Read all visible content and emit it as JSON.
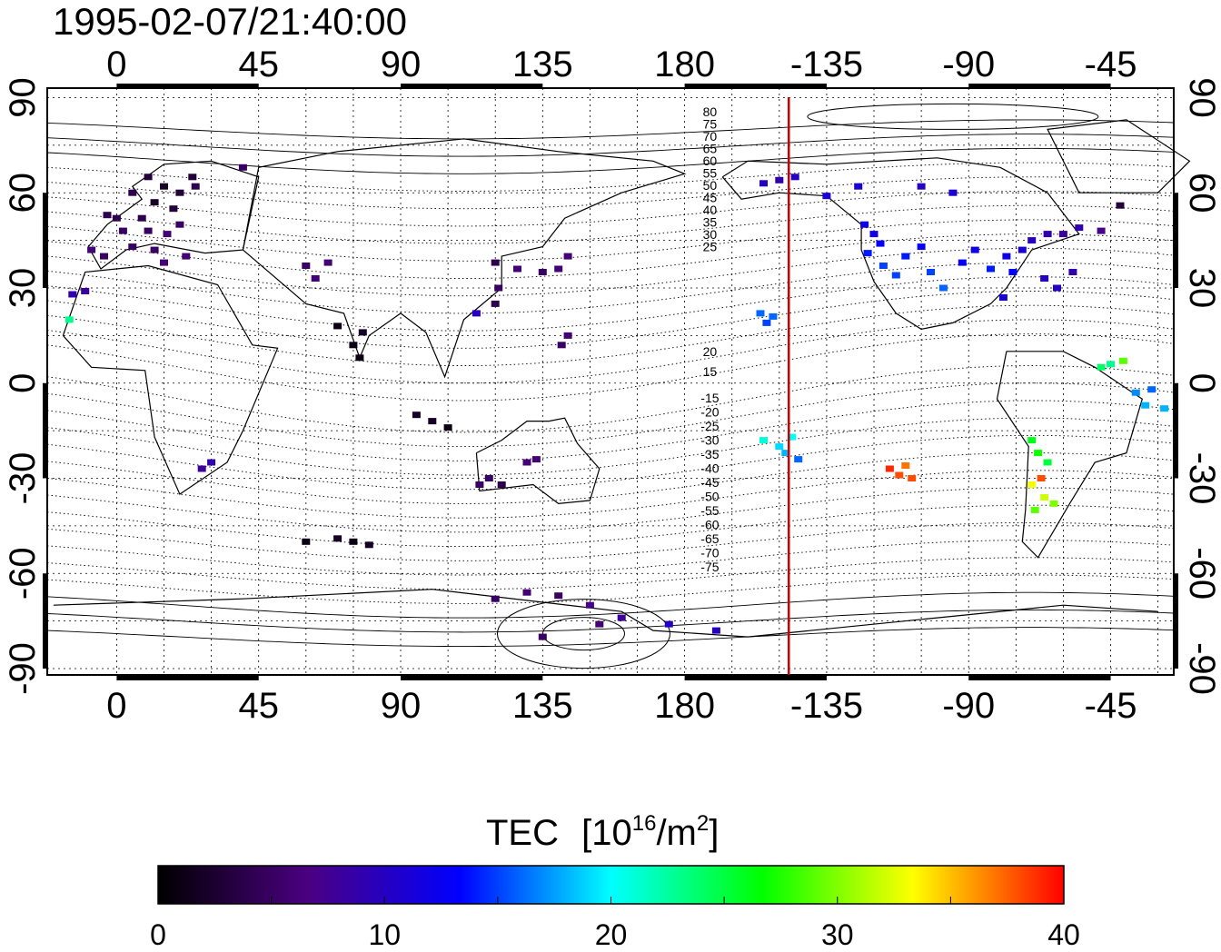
{
  "timestamp": "1995-02-07/21:40:00",
  "map": {
    "lon_ticks": [
      "0",
      "45",
      "90",
      "135",
      "180",
      "-135",
      "-90",
      "-45"
    ],
    "lat_ticks": [
      "90",
      "60",
      "30",
      "0",
      "-30",
      "-60",
      "-90"
    ],
    "lon_range": [
      -22,
      335
    ],
    "lat_range": [
      -92,
      93
    ],
    "grid": true,
    "terminator_lon": 213
  },
  "contour_labels": {
    "north": [
      "80",
      "75",
      "70",
      "65",
      "60",
      "55",
      "50",
      "45",
      "40",
      "35",
      "30",
      "25",
      "20",
      "15"
    ],
    "south": [
      "-15",
      "-20",
      "-25",
      "-30",
      "-35",
      "-40",
      "-45",
      "-50",
      "-55",
      "-60",
      "-65",
      "-70",
      "-75"
    ]
  },
  "colorbar": {
    "title": "TEC",
    "unit_base": "[10",
    "unit_exp": "16",
    "unit_mid": "/m",
    "unit_exp2": "2",
    "unit_end": "]",
    "ticks": [
      "0",
      "10",
      "20",
      "30",
      "40"
    ],
    "min": 0,
    "max": 40,
    "colors": [
      "#000000",
      "#4b0082",
      "#0000ff",
      "#00ffff",
      "#00ff00",
      "#ffff00",
      "#ff0000"
    ]
  },
  "chart_data": {
    "type": "scatter",
    "title": "1995-02-07/21:40:00",
    "xlabel": "",
    "ylabel": "",
    "value_label": "TEC [10^16/m^2]",
    "xlim": [
      -22,
      335
    ],
    "ylim": [
      -92,
      93
    ],
    "points": [
      {
        "lon": 10,
        "lat": 65,
        "tec": 3
      },
      {
        "lon": 15,
        "lat": 62,
        "tec": 2
      },
      {
        "lon": 20,
        "lat": 60,
        "tec": 3
      },
      {
        "lon": 25,
        "lat": 62,
        "tec": 4
      },
      {
        "lon": 5,
        "lat": 60,
        "tec": 4
      },
      {
        "lon": 12,
        "lat": 57,
        "tec": 2
      },
      {
        "lon": 18,
        "lat": 55,
        "tec": 3
      },
      {
        "lon": 8,
        "lat": 52,
        "tec": 4
      },
      {
        "lon": 0,
        "lat": 52,
        "tec": 4
      },
      {
        "lon": -3,
        "lat": 53,
        "tec": 4
      },
      {
        "lon": 2,
        "lat": 48,
        "tec": 5
      },
      {
        "lon": 10,
        "lat": 48,
        "tec": 5
      },
      {
        "lon": 16,
        "lat": 47,
        "tec": 6
      },
      {
        "lon": 20,
        "lat": 50,
        "tec": 5
      },
      {
        "lon": 12,
        "lat": 42,
        "tec": 5
      },
      {
        "lon": 5,
        "lat": 43,
        "tec": 5
      },
      {
        "lon": 15,
        "lat": 38,
        "tec": 6
      },
      {
        "lon": -4,
        "lat": 40,
        "tec": 5
      },
      {
        "lon": -8,
        "lat": 42,
        "tec": 6
      },
      {
        "lon": 22,
        "lat": 40,
        "tec": 6
      },
      {
        "lon": 24,
        "lat": 65,
        "tec": 3
      },
      {
        "lon": 40,
        "lat": 68,
        "tec": 5
      },
      {
        "lon": -10,
        "lat": 29,
        "tec": 8
      },
      {
        "lon": -14,
        "lat": 28,
        "tec": 9
      },
      {
        "lon": -15,
        "lat": 20,
        "tec": 23
      },
      {
        "lon": 60,
        "lat": 37,
        "tec": 5
      },
      {
        "lon": 63,
        "lat": 33,
        "tec": 6
      },
      {
        "lon": 67,
        "lat": 38,
        "tec": 6
      },
      {
        "lon": 75,
        "lat": 12,
        "tec": 1
      },
      {
        "lon": 77,
        "lat": 8,
        "tec": 1
      },
      {
        "lon": 70,
        "lat": 18,
        "tec": 1
      },
      {
        "lon": 78,
        "lat": 16,
        "tec": 2
      },
      {
        "lon": 120,
        "lat": 25,
        "tec": 4
      },
      {
        "lon": 121,
        "lat": 30,
        "tec": 5
      },
      {
        "lon": 127,
        "lat": 36,
        "tec": 6
      },
      {
        "lon": 135,
        "lat": 35,
        "tec": 5
      },
      {
        "lon": 140,
        "lat": 36,
        "tec": 6
      },
      {
        "lon": 143,
        "lat": 40,
        "tec": 6
      },
      {
        "lon": 120,
        "lat": 38,
        "tec": 4
      },
      {
        "lon": 114,
        "lat": 22,
        "tec": 10
      },
      {
        "lon": 141,
        "lat": 12,
        "tec": 5
      },
      {
        "lon": 143,
        "lat": 15,
        "tec": 6
      },
      {
        "lon": 95,
        "lat": -10,
        "tec": 2
      },
      {
        "lon": 100,
        "lat": -12,
        "tec": 2
      },
      {
        "lon": 105,
        "lat": -14,
        "tec": 1
      },
      {
        "lon": 27,
        "lat": -27,
        "tec": 8
      },
      {
        "lon": 30,
        "lat": -25,
        "tec": 9
      },
      {
        "lon": 115,
        "lat": -32,
        "tec": 5
      },
      {
        "lon": 118,
        "lat": -30,
        "tec": 5
      },
      {
        "lon": 122,
        "lat": -32,
        "tec": 4
      },
      {
        "lon": 130,
        "lat": -25,
        "tec": 6
      },
      {
        "lon": 133,
        "lat": -24,
        "tec": 6
      },
      {
        "lon": 60,
        "lat": -50,
        "tec": 1
      },
      {
        "lon": 70,
        "lat": -49,
        "tec": 2
      },
      {
        "lon": 75,
        "lat": -50,
        "tec": 1
      },
      {
        "lon": 80,
        "lat": -51,
        "tec": 2
      },
      {
        "lon": 120,
        "lat": -68,
        "tec": 5
      },
      {
        "lon": 130,
        "lat": -66,
        "tec": 6
      },
      {
        "lon": 140,
        "lat": -67,
        "tec": 5
      },
      {
        "lon": 150,
        "lat": -70,
        "tec": 7
      },
      {
        "lon": 160,
        "lat": -74,
        "tec": 8
      },
      {
        "lon": 175,
        "lat": -76,
        "tec": 10
      },
      {
        "lon": 190,
        "lat": -78,
        "tec": 10
      },
      {
        "lon": 135,
        "lat": -80,
        "tec": 5
      },
      {
        "lon": 153,
        "lat": -76,
        "tec": 6
      },
      {
        "lon": 205,
        "lat": 63,
        "tec": 10
      },
      {
        "lon": 210,
        "lat": 64,
        "tec": 9
      },
      {
        "lon": 215,
        "lat": 65,
        "tec": 10
      },
      {
        "lon": 225,
        "lat": 59,
        "tec": 11
      },
      {
        "lon": 235,
        "lat": 62,
        "tec": 11
      },
      {
        "lon": 255,
        "lat": 62,
        "tec": 10
      },
      {
        "lon": 265,
        "lat": 60,
        "tec": 11
      },
      {
        "lon": 237,
        "lat": 50,
        "tec": 12
      },
      {
        "lon": 240,
        "lat": 47,
        "tec": 12
      },
      {
        "lon": 242,
        "lat": 44,
        "tec": 13
      },
      {
        "lon": 238,
        "lat": 41,
        "tec": 14
      },
      {
        "lon": 243,
        "lat": 37,
        "tec": 15
      },
      {
        "lon": 247,
        "lat": 34,
        "tec": 15
      },
      {
        "lon": 250,
        "lat": 40,
        "tec": 14
      },
      {
        "lon": 255,
        "lat": 43,
        "tec": 13
      },
      {
        "lon": 258,
        "lat": 35,
        "tec": 15
      },
      {
        "lon": 262,
        "lat": 30,
        "tec": 16
      },
      {
        "lon": 268,
        "lat": 38,
        "tec": 13
      },
      {
        "lon": 272,
        "lat": 42,
        "tec": 12
      },
      {
        "lon": 277,
        "lat": 36,
        "tec": 14
      },
      {
        "lon": 282,
        "lat": 40,
        "tec": 12
      },
      {
        "lon": 287,
        "lat": 42,
        "tec": 11
      },
      {
        "lon": 284,
        "lat": 35,
        "tec": 13
      },
      {
        "lon": 290,
        "lat": 45,
        "tec": 10
      },
      {
        "lon": 295,
        "lat": 47,
        "tec": 9
      },
      {
        "lon": 300,
        "lat": 47,
        "tec": 8
      },
      {
        "lon": 305,
        "lat": 49,
        "tec": 9
      },
      {
        "lon": 312,
        "lat": 48,
        "tec": 7
      },
      {
        "lon": 318,
        "lat": 56,
        "tec": 3
      },
      {
        "lon": 281,
        "lat": 27,
        "tec": 11
      },
      {
        "lon": 294,
        "lat": 33,
        "tec": 10
      },
      {
        "lon": 298,
        "lat": 30,
        "tec": 10
      },
      {
        "lon": 303,
        "lat": 35,
        "tec": 9
      },
      {
        "lon": 204,
        "lat": 22,
        "tec": 16
      },
      {
        "lon": 208,
        "lat": 21,
        "tec": 16
      },
      {
        "lon": 206,
        "lat": 19,
        "tec": 15
      },
      {
        "lon": 205,
        "lat": -18,
        "tec": 21
      },
      {
        "lon": 210,
        "lat": -20,
        "tec": 19
      },
      {
        "lon": 214,
        "lat": -17,
        "tec": 20
      },
      {
        "lon": 212,
        "lat": -22,
        "tec": 18
      },
      {
        "lon": 216,
        "lat": -24,
        "tec": 16
      },
      {
        "lon": 245,
        "lat": -27,
        "tec": 39
      },
      {
        "lon": 248,
        "lat": -29,
        "tec": 38
      },
      {
        "lon": 250,
        "lat": -26,
        "tec": 37
      },
      {
        "lon": 252,
        "lat": -30,
        "tec": 38
      },
      {
        "lon": 290,
        "lat": -18,
        "tec": 26
      },
      {
        "lon": 292,
        "lat": -22,
        "tec": 27
      },
      {
        "lon": 295,
        "lat": -25,
        "tec": 25
      },
      {
        "lon": 290,
        "lat": -32,
        "tec": 33
      },
      {
        "lon": 294,
        "lat": -36,
        "tec": 32
      },
      {
        "lon": 291,
        "lat": -40,
        "tec": 29
      },
      {
        "lon": 297,
        "lat": -38,
        "tec": 30
      },
      {
        "lon": 293,
        "lat": -30,
        "tec": 38
      },
      {
        "lon": 312,
        "lat": 5,
        "tec": 24
      },
      {
        "lon": 315,
        "lat": 6,
        "tec": 23
      },
      {
        "lon": 319,
        "lat": 7,
        "tec": 29
      },
      {
        "lon": 323,
        "lat": -3,
        "tec": 17
      },
      {
        "lon": 328,
        "lat": -2,
        "tec": 16
      },
      {
        "lon": 332,
        "lat": -8,
        "tec": 18
      },
      {
        "lon": 326,
        "lat": -7,
        "tec": 18
      }
    ]
  }
}
